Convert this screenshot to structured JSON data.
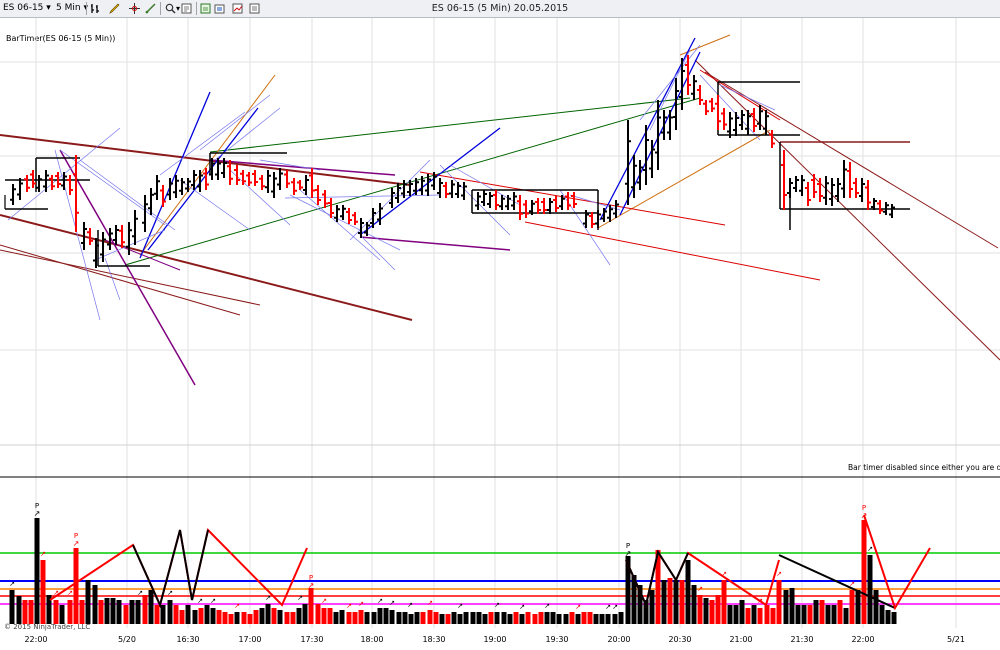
{
  "window": {
    "title": "ES 06-15 (5 Min)  20.05.2015"
  },
  "toolbar": {
    "instrument": "ES 06-15",
    "interval": "5 Min",
    "icons": [
      "bar-type-icon",
      "pencil-icon",
      "crosshair-icon",
      "draw-tool-icon",
      "zoom-icon",
      "properties-icon",
      "data-box-icon",
      "screenshot-icon",
      "chart-trader-icon",
      "strategy-icon"
    ]
  },
  "indicator": {
    "label": "BarTimer(ES 06-15 (5 Min))",
    "message": "Bar timer disabled since either you are disconne"
  },
  "footer": {
    "copyright": "© 2015 NinjaTrader, LLC"
  },
  "x_axis": {
    "ticks": [
      "22:00",
      "5/20",
      "16:30",
      "17:00",
      "17:30",
      "18:00",
      "18:30",
      "19:00",
      "19:30",
      "20:00",
      "20:30",
      "21:00",
      "21:30",
      "22:00",
      "5/21"
    ]
  },
  "colors": {
    "up_bar": "#000000",
    "down_bar": "#ff0000",
    "trend_blue": "#0000dd",
    "trend_green": "#006400",
    "trend_orange": "#d07010",
    "trend_darkred": "#8b1a1a",
    "trend_purple": "#800080",
    "level_green": "#00cc00",
    "level_blue": "#0000ff",
    "level_orange": "#ff8000",
    "level_red": "#ff0000",
    "level_magenta": "#ff00ff"
  },
  "volume_markers": {
    "p_label": "P",
    "arrow_glyph": "↗"
  }
}
